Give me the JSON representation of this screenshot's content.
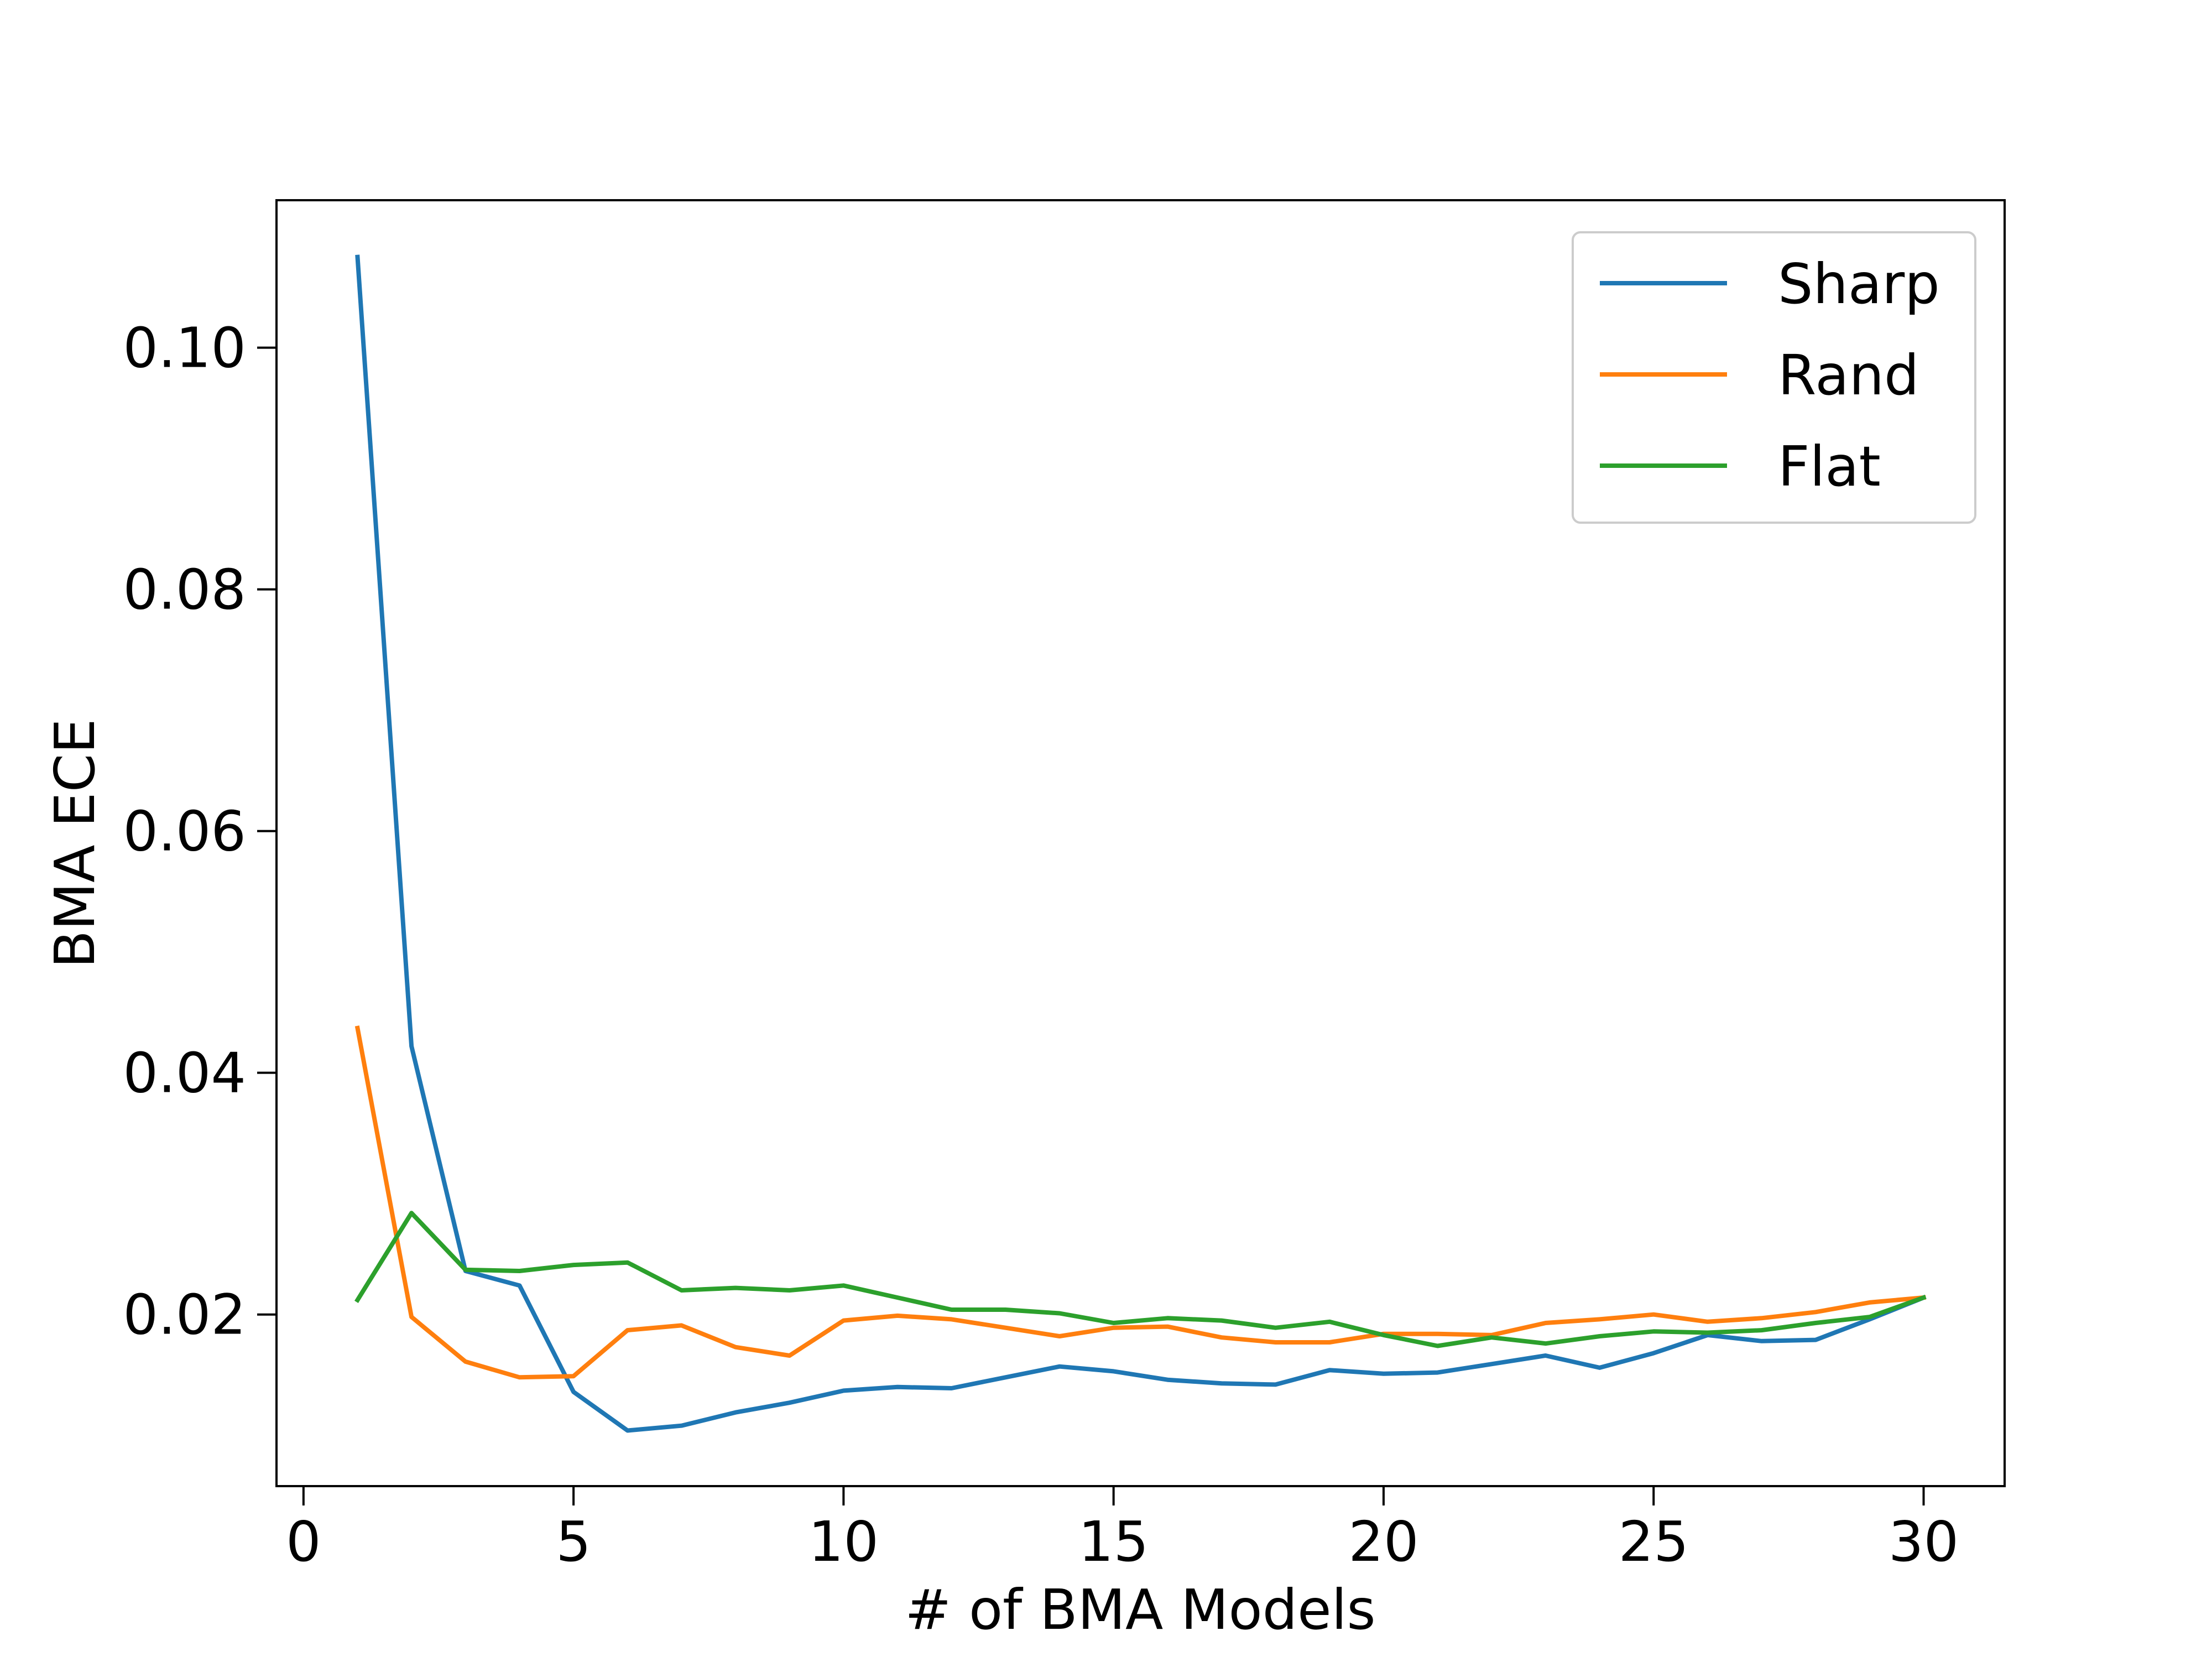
{
  "chart_data": {
    "type": "line",
    "title": "",
    "xlabel": "# of BMA Models",
    "ylabel": "BMA ECE",
    "xlim": [
      -0.5,
      31.5
    ],
    "ylim": [
      0.0058,
      0.1122
    ],
    "xticks": [
      0,
      5,
      10,
      15,
      20,
      25,
      30
    ],
    "xtick_labels": [
      "0",
      "5",
      "10",
      "15",
      "20",
      "25",
      "30"
    ],
    "yticks": [
      0.02,
      0.04,
      0.06,
      0.08,
      0.1
    ],
    "ytick_labels": [
      "0.02",
      "0.04",
      "0.06",
      "0.08",
      "0.10"
    ],
    "grid": false,
    "legend_position": "top-right",
    "x": [
      1,
      2,
      3,
      4,
      5,
      6,
      7,
      8,
      9,
      10,
      11,
      12,
      13,
      14,
      15,
      16,
      17,
      18,
      19,
      20,
      21,
      22,
      23,
      24,
      25,
      26,
      27,
      28,
      29,
      30
    ],
    "series": [
      {
        "name": "Sharp",
        "color": "#1f77b4",
        "values": [
          0.1075,
          0.0422,
          0.0236,
          0.0224,
          0.0136,
          0.0104,
          0.0108,
          0.0119,
          0.0127,
          0.0137,
          0.014,
          0.0139,
          0.0148,
          0.0157,
          0.0153,
          0.0146,
          0.0143,
          0.0142,
          0.0154,
          0.0151,
          0.0152,
          0.0159,
          0.0166,
          0.0156,
          0.0168,
          0.0183,
          0.0178,
          0.0179,
          0.0196,
          0.0214
        ]
      },
      {
        "name": "Rand",
        "color": "#ff7f0e",
        "values": [
          0.0437,
          0.0198,
          0.0161,
          0.0148,
          0.0149,
          0.0187,
          0.0191,
          0.0173,
          0.0166,
          0.0195,
          0.0199,
          0.0196,
          0.0189,
          0.0182,
          0.0189,
          0.019,
          0.0181,
          0.0177,
          0.0177,
          0.0184,
          0.0184,
          0.0183,
          0.0193,
          0.0196,
          0.02,
          0.0194,
          0.0197,
          0.0202,
          0.021,
          0.0214
        ]
      },
      {
        "name": "Flat",
        "color": "#2ca02c",
        "values": [
          0.0212,
          0.0284,
          0.0237,
          0.0236,
          0.0241,
          0.0243,
          0.022,
          0.0222,
          0.022,
          0.0224,
          0.0214,
          0.0204,
          0.0204,
          0.0201,
          0.0193,
          0.0197,
          0.0195,
          0.0189,
          0.0194,
          0.0183,
          0.0174,
          0.0181,
          0.0176,
          0.0182,
          0.0186,
          0.0185,
          0.0187,
          0.0193,
          0.0198,
          0.0214
        ]
      }
    ]
  }
}
